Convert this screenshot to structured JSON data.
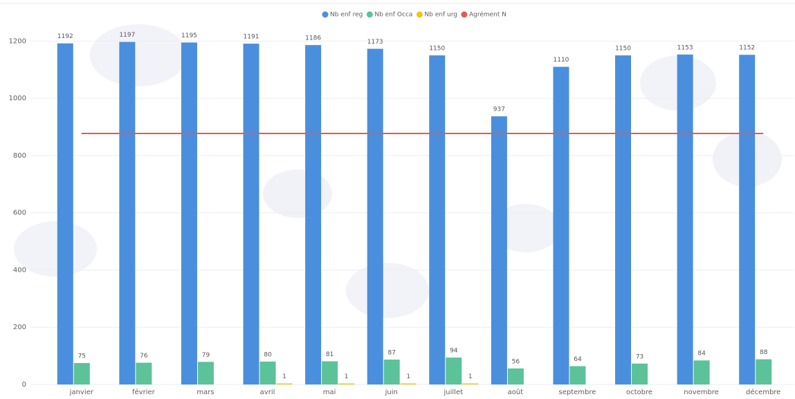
{
  "chart_data": {
    "type": "bar",
    "categories": [
      "janvier",
      "février",
      "mars",
      "avril",
      "mai",
      "juin",
      "juillet",
      "août",
      "septembre",
      "octobre",
      "novembre",
      "décembre"
    ],
    "series": [
      {
        "name": "Nb enf reg",
        "color": "#4a8ede",
        "values": [
          1192,
          1197,
          1195,
          1191,
          1186,
          1173,
          1150,
          937,
          1110,
          1150,
          1153,
          1152
        ]
      },
      {
        "name": "Nb enf Occa",
        "color": "#5bc29a",
        "values": [
          75,
          76,
          79,
          80,
          81,
          87,
          94,
          56,
          64,
          73,
          84,
          88
        ]
      },
      {
        "name": "Nb enf urg",
        "color": "#f0c419",
        "values": [
          null,
          null,
          null,
          1,
          1,
          1,
          1,
          null,
          null,
          null,
          null,
          null
        ]
      },
      {
        "name": "Agrément N",
        "color": "#e55a4e",
        "type": "line",
        "values": [
          877,
          877,
          877,
          877,
          877,
          877,
          877,
          877,
          877,
          877,
          877,
          877
        ]
      }
    ],
    "ylim": [
      0,
      1300
    ],
    "yticks": [
      0,
      200,
      400,
      600,
      800,
      1000,
      1200
    ],
    "grid": true,
    "legend": "top"
  }
}
